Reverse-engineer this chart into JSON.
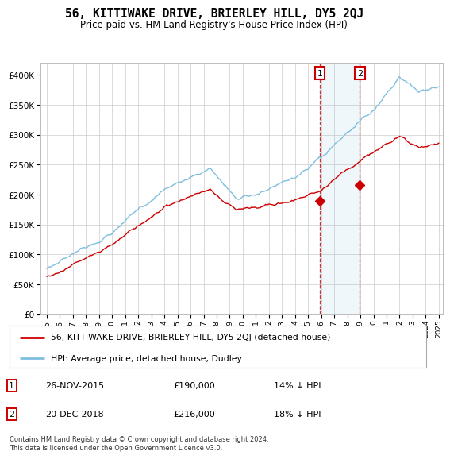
{
  "title": "56, KITTIWAKE DRIVE, BRIERLEY HILL, DY5 2QJ",
  "subtitle": "Price paid vs. HM Land Registry's House Price Index (HPI)",
  "legend_line1": "56, KITTIWAKE DRIVE, BRIERLEY HILL, DY5 2QJ (detached house)",
  "legend_line2": "HPI: Average price, detached house, Dudley",
  "annotation1_date": "26-NOV-2015",
  "annotation1_price": "£190,000",
  "annotation1_hpi": "14% ↓ HPI",
  "annotation2_date": "20-DEC-2018",
  "annotation2_price": "£216,000",
  "annotation2_hpi": "18% ↓ HPI",
  "footer": "Contains HM Land Registry data © Crown copyright and database right 2024.\nThis data is licensed under the Open Government Licence v3.0.",
  "hpi_color": "#7fbfdf",
  "price_color": "#cc0000",
  "annotation_color": "#cc0000",
  "background_color": "#ffffff",
  "grid_color": "#cccccc",
  "ylim": [
    0,
    420000
  ],
  "yticks": [
    0,
    50000,
    100000,
    150000,
    200000,
    250000,
    300000,
    350000,
    400000
  ],
  "start_year": 1995,
  "end_year": 2025,
  "sale1_year": 2015.9,
  "sale1_price": 190000,
  "sale2_year": 2018.95,
  "sale2_price": 216000
}
